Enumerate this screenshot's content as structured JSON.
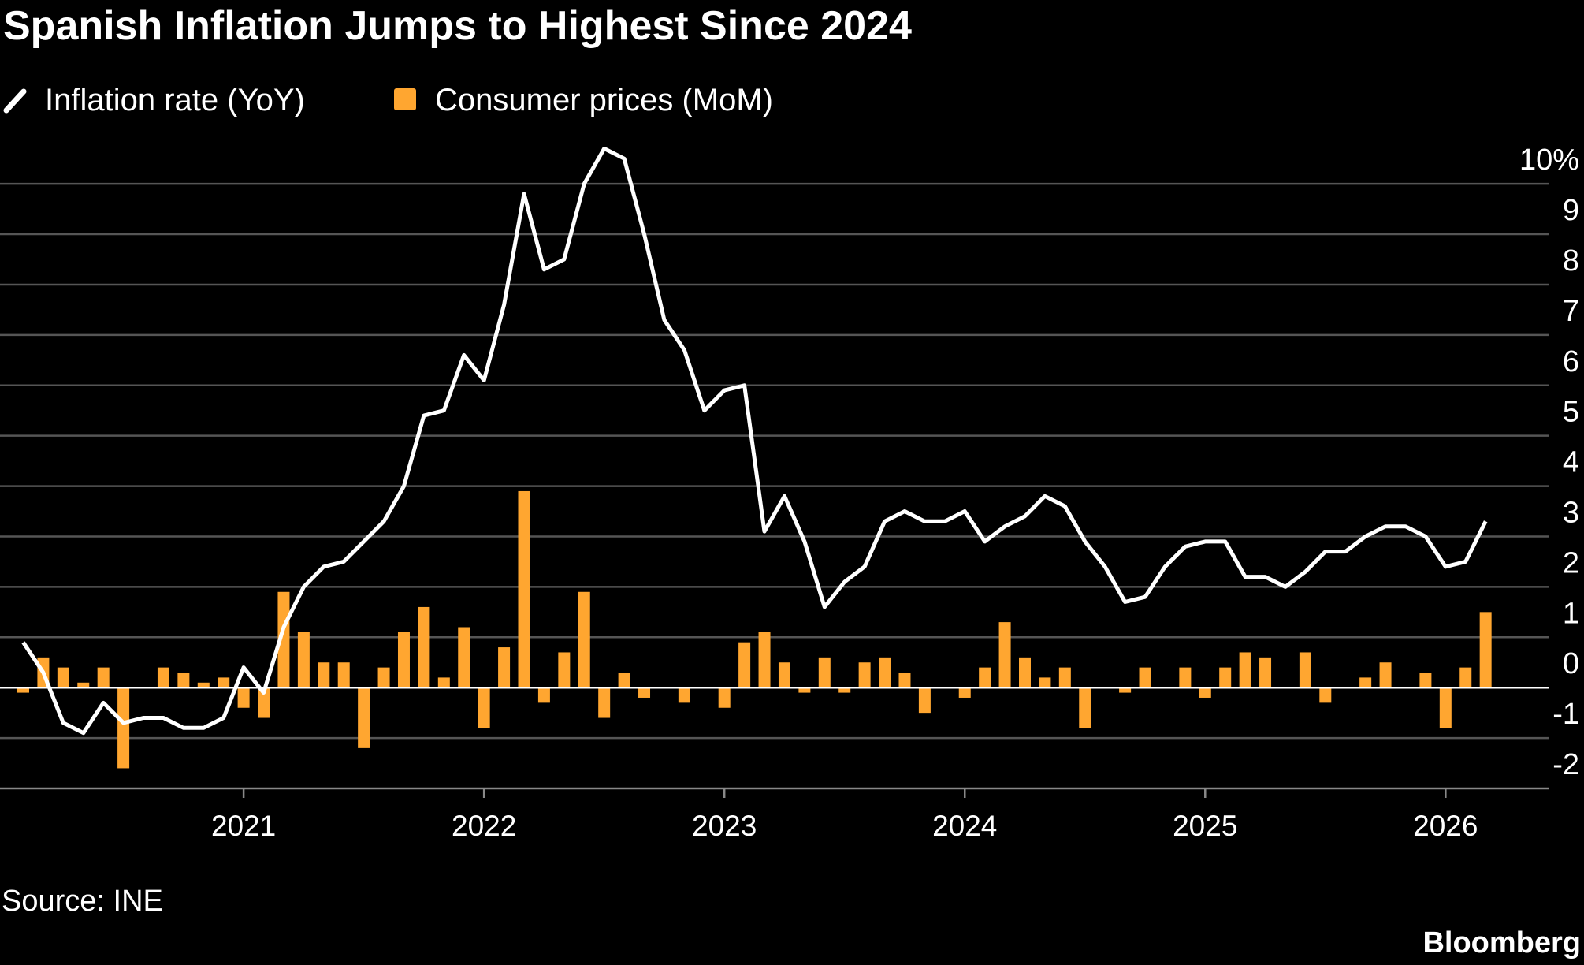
{
  "chart_data": {
    "type": "bar-line",
    "title": "Spanish Inflation Jumps to Highest Since 2024",
    "source": "Source: INE",
    "brand": "Bloomberg",
    "categories": [
      null,
      null,
      null,
      null,
      null,
      null,
      null,
      null,
      null,
      null,
      null,
      "2021",
      null,
      null,
      null,
      null,
      null,
      null,
      null,
      null,
      null,
      null,
      null,
      "2022",
      null,
      null,
      null,
      null,
      null,
      null,
      null,
      null,
      null,
      null,
      null,
      "2023",
      null,
      null,
      null,
      null,
      null,
      null,
      null,
      null,
      null,
      null,
      null,
      "2024",
      null,
      null,
      null,
      null,
      null,
      null,
      null,
      null,
      null,
      null,
      null,
      "2025",
      null,
      null,
      null,
      null,
      null,
      null,
      null,
      null,
      null,
      null,
      null,
      "2026",
      null,
      null
    ],
    "series": [
      {
        "name": "Consumer prices (MoM)",
        "kind": "bar",
        "color": "#ffa630",
        "values": [
          -0.1,
          0.6,
          0.4,
          0.1,
          0.4,
          -1.6,
          0,
          0.4,
          0.3,
          0.1,
          0.2,
          -0.4,
          -0.6,
          1.9,
          1.1,
          0.5,
          0.5,
          -1.2,
          0.4,
          1.1,
          1.6,
          0.2,
          1.2,
          -0.8,
          0.8,
          3.9,
          -0.3,
          0.7,
          1.9,
          -0.6,
          0.3,
          -0.2,
          0,
          -0.3,
          0,
          -0.4,
          0.9,
          1.1,
          0.5,
          -0.1,
          0.6,
          -0.1,
          0.5,
          0.6,
          0.3,
          -0.5,
          0,
          -0.2,
          0.4,
          1.3,
          0.6,
          0.2,
          0.4,
          -0.8,
          0,
          -0.1,
          0.4,
          0,
          0.4,
          -0.2,
          0.4,
          0.7,
          0.6,
          0,
          0.7,
          -0.3,
          0,
          0.2,
          0.5,
          0,
          0.3,
          -0.8,
          0.4,
          1.5
        ]
      },
      {
        "name": "Inflation rate (YoY)",
        "kind": "line",
        "color": "#ffffff",
        "values": [
          0.9,
          0.3,
          -0.7,
          -0.9,
          -0.3,
          -0.7,
          -0.6,
          -0.6,
          -0.8,
          -0.8,
          -0.6,
          0.4,
          -0.1,
          1.2,
          2.0,
          2.4,
          2.5,
          2.9,
          3.3,
          4.0,
          5.4,
          5.5,
          6.6,
          6.1,
          7.6,
          9.8,
          8.3,
          8.5,
          10.0,
          10.7,
          10.5,
          9.0,
          7.3,
          6.7,
          5.5,
          5.9,
          6.0,
          3.1,
          3.8,
          2.9,
          1.6,
          2.1,
          2.4,
          3.3,
          3.5,
          3.3,
          3.3,
          3.5,
          2.9,
          3.2,
          3.4,
          3.8,
          3.6,
          2.9,
          2.4,
          1.7,
          1.8,
          2.4,
          2.8,
          2.9,
          2.9,
          2.2,
          2.2,
          2.0,
          2.3,
          2.7,
          2.7,
          3.0,
          3.2,
          3.2,
          3.0,
          2.4,
          2.5,
          3.3
        ]
      }
    ],
    "ylim": [
      -2,
      10.8
    ],
    "yticks": [
      -2,
      -1,
      0,
      1,
      2,
      3,
      4,
      5,
      6,
      7,
      8,
      9,
      {
        "value": 10,
        "label": "10%"
      }
    ],
    "grid": true
  }
}
